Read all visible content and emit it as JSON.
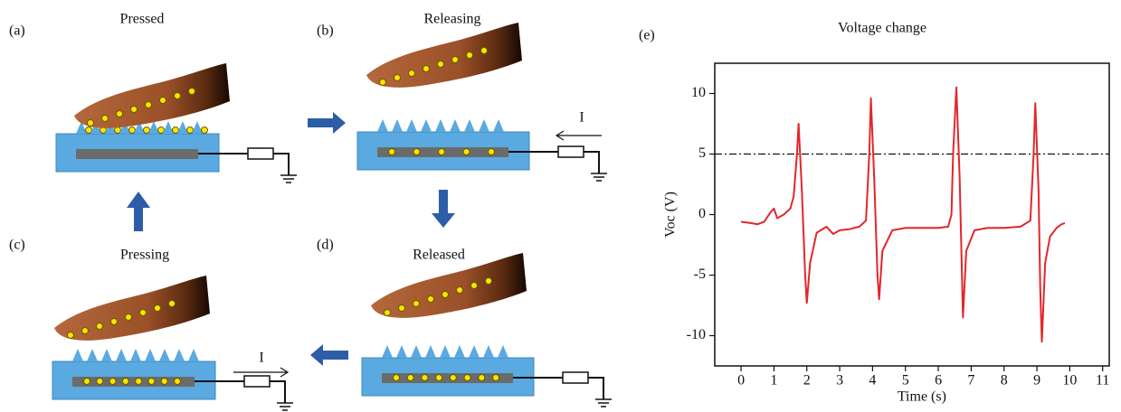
{
  "panels": [
    {
      "label": "(a)",
      "title": "Pressed"
    },
    {
      "label": "(b)",
      "title": "Releasing"
    },
    {
      "label": "(c)",
      "title": "Pressing"
    },
    {
      "label": "(d)",
      "title": "Released"
    }
  ],
  "current_labels": [
    "I",
    "I"
  ],
  "chart_data": {
    "type": "line",
    "panel_label": "(e)",
    "title": "Voltage change",
    "x_label": "Time (s)",
    "y_label": "Voc (V)",
    "color": "#e3262c",
    "x": [
      0,
      0.3,
      0.5,
      0.7,
      0.9,
      1.0,
      1.1,
      1.3,
      1.5,
      1.6,
      1.7,
      1.75,
      1.85,
      1.95,
      2.0,
      2.1,
      2.3,
      2.6,
      2.8,
      3.0,
      3.3,
      3.6,
      3.8,
      3.9,
      3.95,
      4.05,
      4.15,
      4.2,
      4.3,
      4.6,
      5.0,
      5.5,
      6.0,
      6.3,
      6.4,
      6.45,
      6.55,
      6.65,
      6.72,
      6.75,
      6.85,
      7.1,
      7.5,
      8.0,
      8.5,
      8.8,
      8.9,
      8.95,
      9.05,
      9.1,
      9.15,
      9.25,
      9.4,
      9.6,
      9.75,
      9.85
    ],
    "values": [
      -0.6,
      -0.7,
      -0.8,
      -0.6,
      0.2,
      0.5,
      -0.3,
      0,
      0.5,
      1.5,
      5,
      7.5,
      2,
      -5,
      -7.3,
      -4,
      -1.5,
      -1,
      -1.6,
      -1.3,
      -1.2,
      -1,
      -0.5,
      5,
      9.6,
      3,
      -5,
      -7,
      -3,
      -1.3,
      -1.1,
      -1.1,
      -1.1,
      -1,
      0,
      5,
      10.5,
      3,
      -5,
      -8.5,
      -3,
      -1.3,
      -1.1,
      -1.1,
      -1,
      -0.5,
      5,
      9.2,
      2,
      -6,
      -10.5,
      -4,
      -1.8,
      -1.1,
      -0.8,
      -0.7
    ],
    "reference_line": 5,
    "xlim": [
      -0.8,
      11.2
    ],
    "xticks": [
      0,
      1,
      2,
      3,
      4,
      5,
      6,
      7,
      8,
      9,
      10,
      11
    ],
    "ylim": [
      -12.5,
      12.5
    ],
    "yticks": [
      -10,
      -5,
      0,
      5,
      10
    ]
  }
}
